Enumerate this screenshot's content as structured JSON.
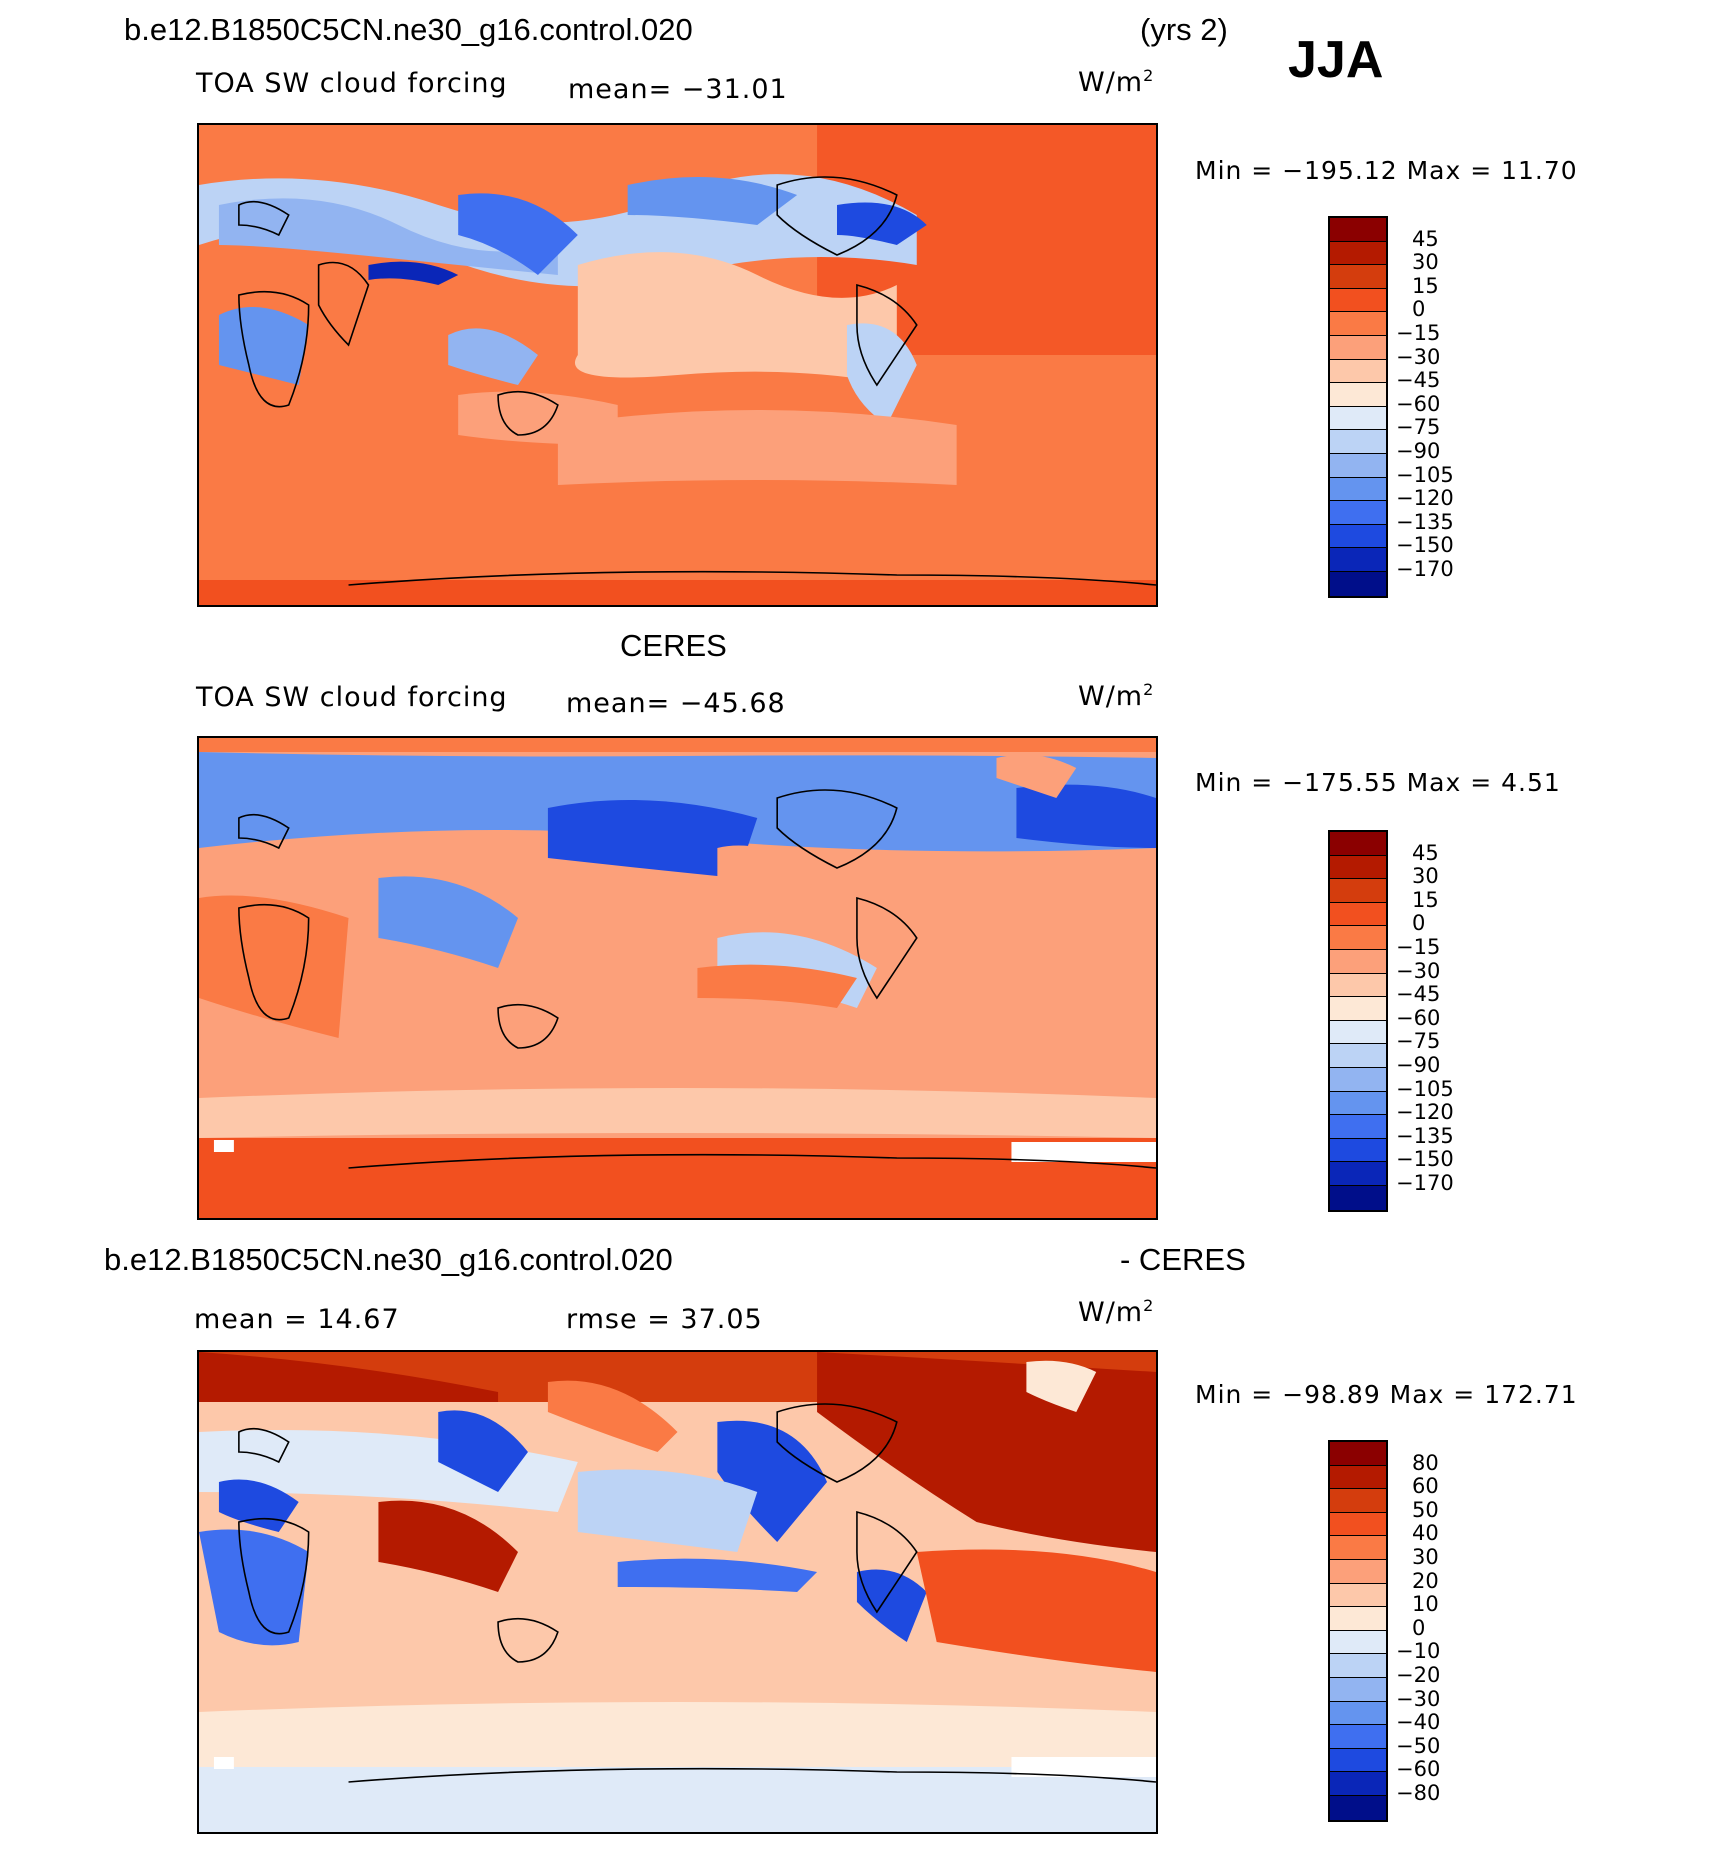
{
  "header": {
    "case_top": "b.e12.B1850C5CN.ne30_g16.control.020",
    "years": "(yrs 2)",
    "season": "JJA"
  },
  "panels": [
    {
      "title": "",
      "variable": "TOA SW cloud forcing",
      "stat1": "mean= −31.01",
      "stat2": "",
      "units": "W/m",
      "units_sup": "2",
      "minmax": "Min = −195.12 Max =   11.70",
      "levels": [
        "45",
        "30",
        "15",
        "0",
        "−15",
        "−30",
        "−45",
        "−60",
        "−75",
        "−90",
        "−105",
        "−120",
        "−135",
        "−150",
        "−170"
      ],
      "colors": [
        "#8b0000",
        "#b41a00",
        "#d43d0d",
        "#f2501f",
        "#fa7a45",
        "#fca07a",
        "#fdc8aa",
        "#fde8d6",
        "#dfeaf8",
        "#bcd3f5",
        "#92b4f1",
        "#6494ef",
        "#3f6ff0",
        "#1e4ae0",
        "#0a26b8",
        "#000e8a"
      ]
    },
    {
      "title": "CERES",
      "variable": "TOA SW cloud forcing",
      "stat1": "mean= −45.68",
      "stat2": "",
      "units": "W/m",
      "units_sup": "2",
      "minmax": "Min = −175.55 Max =    4.51",
      "levels": [
        "45",
        "30",
        "15",
        "0",
        "−15",
        "−30",
        "−45",
        "−60",
        "−75",
        "−90",
        "−105",
        "−120",
        "−135",
        "−150",
        "−170"
      ],
      "colors": [
        "#8b0000",
        "#b41a00",
        "#d43d0d",
        "#f2501f",
        "#fa7a45",
        "#fca07a",
        "#fdc8aa",
        "#fde8d6",
        "#dfeaf8",
        "#bcd3f5",
        "#92b4f1",
        "#6494ef",
        "#3f6ff0",
        "#1e4ae0",
        "#0a26b8",
        "#000e8a"
      ]
    },
    {
      "title": "b.e12.B1850C5CN.ne30_g16.control.020",
      "title_right": "- CERES",
      "variable": "",
      "stat1": "mean =   14.67",
      "stat2": "rmse =   37.05",
      "units": "W/m",
      "units_sup": "2",
      "minmax": "Min = −98.89 Max = 172.71",
      "levels": [
        "80",
        "60",
        "50",
        "40",
        "30",
        "20",
        "10",
        "0",
        "−10",
        "−20",
        "−30",
        "−40",
        "−50",
        "−60",
        "−80"
      ],
      "colors": [
        "#8b0000",
        "#b41a00",
        "#d43d0d",
        "#f2501f",
        "#fa7a45",
        "#fca07a",
        "#fdc8aa",
        "#fde8d6",
        "#dfeaf8",
        "#bcd3f5",
        "#92b4f1",
        "#6494ef",
        "#3f6ff0",
        "#1e4ae0",
        "#0a26b8",
        "#000e8a"
      ]
    }
  ]
}
